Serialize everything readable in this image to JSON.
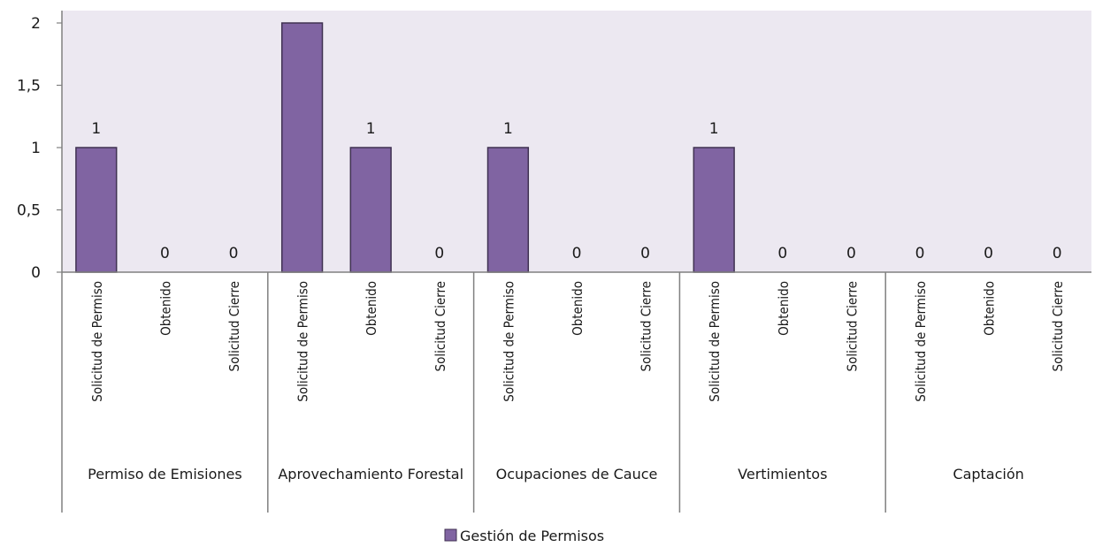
{
  "chart_data": {
    "type": "bar",
    "groups": [
      {
        "label": "Permiso de Emisiones",
        "categories": [
          "Solicitud de Permiso",
          "Obtenido",
          "Solicitud Cierre"
        ],
        "values": [
          1,
          0,
          0
        ],
        "data_labels": [
          "1",
          "0",
          "0"
        ]
      },
      {
        "label": "Aprovechamiento Forestal",
        "categories": [
          "Solicitud de Permiso",
          "Obtenido",
          "Solicitud Cierre"
        ],
        "values": [
          2,
          1,
          0
        ],
        "data_labels": [
          "",
          "1",
          "0"
        ]
      },
      {
        "label": "Ocupaciones de Cauce",
        "categories": [
          "Solicitud de Permiso",
          "Obtenido",
          "Solicitud Cierre"
        ],
        "values": [
          1,
          0,
          0
        ],
        "data_labels": [
          "1",
          "0",
          "0"
        ]
      },
      {
        "label": "Vertimientos",
        "categories": [
          "Solicitud de Permiso",
          "Obtenido",
          "Solicitud Cierre"
        ],
        "values": [
          1,
          0,
          0
        ],
        "data_labels": [
          "1",
          "0",
          "0"
        ]
      },
      {
        "label": "Captación",
        "categories": [
          "Solicitud de Permiso",
          "Obtenido",
          "Solicitud Cierre"
        ],
        "values": [
          0,
          0,
          0
        ],
        "data_labels": [
          "0",
          "0",
          "0"
        ]
      }
    ],
    "series": [
      {
        "name": "Gestión de Permisos"
      }
    ],
    "yticks": [
      "0",
      "0,5",
      "1",
      "1,5",
      "2"
    ],
    "ytick_values": [
      0,
      0.5,
      1,
      1.5,
      2
    ],
    "ylim": [
      0,
      2
    ],
    "grid": false,
    "legend": "bottom",
    "colors": {
      "bar": "#8064a2",
      "bar_border": "#3f3151",
      "plot_bg": "#ece8f1",
      "axis": "#808080"
    }
  }
}
